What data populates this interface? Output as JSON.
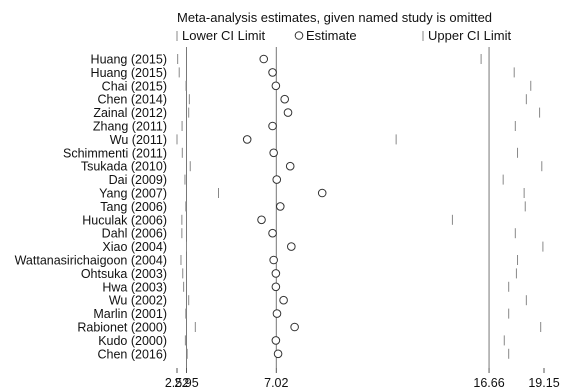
{
  "chart_data": {
    "type": "forest",
    "title": "Meta-analysis estimates, given named study is omitted",
    "legend": {
      "lower": "Lower CI Limit",
      "estimate": "Estimate",
      "upper": "Upper CI Limit",
      "placement": "top"
    },
    "xlim": [
      2.52,
      19.15
    ],
    "xticks": [
      {
        "value": 2.52,
        "label": "2.52"
      },
      {
        "value": 2.95,
        "label": "2.95"
      },
      {
        "value": 7.02,
        "label": "7.02"
      },
      {
        "value": 16.66,
        "label": "16.66"
      },
      {
        "value": 19.15,
        "label": "19.15"
      }
    ],
    "reference_lines": [
      2.95,
      7.02,
      16.66
    ],
    "studies": [
      {
        "name": "Huang (2015)",
        "lower": 2.55,
        "estimate": 6.45,
        "upper": 16.3
      },
      {
        "name": "Huang (2015)",
        "lower": 2.62,
        "estimate": 6.85,
        "upper": 17.8
      },
      {
        "name": "Chai (2015)",
        "lower": 2.93,
        "estimate": 7.0,
        "upper": 18.55
      },
      {
        "name": "Chen (2014)",
        "lower": 3.08,
        "estimate": 7.4,
        "upper": 18.35
      },
      {
        "name": "Zainal (2012)",
        "lower": 3.05,
        "estimate": 7.55,
        "upper": 18.95
      },
      {
        "name": "Zhang (2011)",
        "lower": 2.75,
        "estimate": 6.85,
        "upper": 17.85
      },
      {
        "name": "Wu (2011)",
        "lower": 2.52,
        "estimate": 5.7,
        "upper": 12.45
      },
      {
        "name": "Schimmenti (2011)",
        "lower": 2.76,
        "estimate": 6.9,
        "upper": 17.95
      },
      {
        "name": "Tsukada (2010)",
        "lower": 3.12,
        "estimate": 7.65,
        "upper": 19.05
      },
      {
        "name": "Dai (2009)",
        "lower": 2.88,
        "estimate": 7.04,
        "upper": 17.3
      },
      {
        "name": "Yang (2007)",
        "lower": 4.4,
        "estimate": 9.1,
        "upper": 18.25
      },
      {
        "name": "Tang (2006)",
        "lower": 2.92,
        "estimate": 7.2,
        "upper": 18.3
      },
      {
        "name": "Huculak (2006)",
        "lower": 2.74,
        "estimate": 6.35,
        "upper": 15.0
      },
      {
        "name": "Dahl (2006)",
        "lower": 2.74,
        "estimate": 6.85,
        "upper": 17.85
      },
      {
        "name": "Xiao (2004)",
        "lower": 2.95,
        "estimate": 7.7,
        "upper": 19.1
      },
      {
        "name": "Wattanasirichaigoon (2004)",
        "lower": 2.7,
        "estimate": 6.9,
        "upper": 17.95
      },
      {
        "name": "Ohtsuka (2003)",
        "lower": 2.78,
        "estimate": 7.0,
        "upper": 17.9
      },
      {
        "name": "Hwa (2003)",
        "lower": 2.82,
        "estimate": 7.0,
        "upper": 17.55
      },
      {
        "name": "Wu (2002)",
        "lower": 3.05,
        "estimate": 7.35,
        "upper": 18.35
      },
      {
        "name": "Marlin (2001)",
        "lower": 2.92,
        "estimate": 7.05,
        "upper": 17.55
      },
      {
        "name": "Rabionet (2000)",
        "lower": 3.35,
        "estimate": 7.85,
        "upper": 19.0
      },
      {
        "name": "Kudo (2000)",
        "lower": 2.9,
        "estimate": 7.0,
        "upper": 17.35
      },
      {
        "name": "Chen (2016)",
        "lower": 2.98,
        "estimate": 7.1,
        "upper": 17.55
      }
    ]
  }
}
